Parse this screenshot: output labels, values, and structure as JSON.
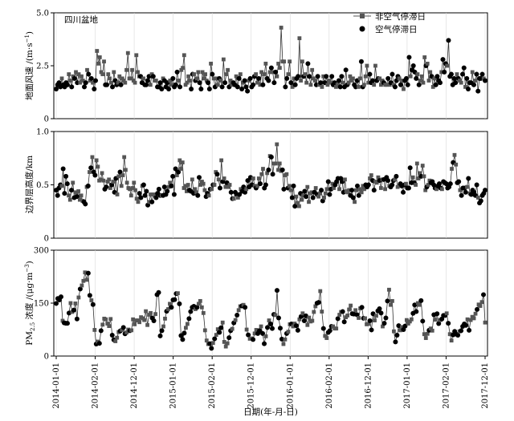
{
  "chart_data": {
    "type": "line",
    "region_label": "四川盆地",
    "legend": {
      "placement": "top-right",
      "entries": [
        {
          "name": "非空气停滞日",
          "marker": "square",
          "color": "#555555"
        },
        {
          "name": "空气停滞日",
          "marker": "circle",
          "color": "#000000"
        }
      ]
    },
    "xlabel": "日期(年-月-日)",
    "x_tick_labels": [
      "2014-01-01",
      "2014-02-01",
      "2014-12-01",
      "2015-01-01",
      "2015-02-01",
      "2015-12-01",
      "2016-01-01",
      "2016-02-01",
      "2016-12-01",
      "2017-01-01",
      "2017-02-01",
      "2017-12-01"
    ],
    "panels": [
      {
        "id": "wind",
        "ylabel": "地面风速 /(m·s⁻¹)",
        "ylabel_main": "地面风速 /(m·s",
        "ylabel_sup": "−1",
        "ylabel_close": ")",
        "ylim": [
          0,
          5
        ],
        "yticks": [
          "0",
          "2.5",
          "5.0"
        ],
        "ytick_values": [
          0,
          2.5,
          5.0
        ],
        "series_values": [
          1.4,
          1.6,
          1.7,
          1.5,
          1.9,
          1.6,
          1.5,
          1.7,
          1.6,
          2.1,
          1.8,
          1.5,
          2.0,
          1.9,
          2.2,
          1.7,
          2.1,
          1.7,
          2.0,
          1.8,
          1.5,
          1.7,
          2.3,
          2.1,
          1.8,
          1.9,
          1.7,
          1.4,
          1.8,
          3.2,
          2.6,
          2.9,
          2.2,
          2.1,
          2.7,
          1.6,
          1.6,
          2.1,
          1.9,
          1.7,
          1.5,
          2.2,
          1.8,
          1.6,
          1.7,
          2.0,
          1.6,
          1.9,
          1.8,
          1.7,
          2.3,
          3.1,
          1.9,
          1.9,
          2.3,
          1.8,
          1.7,
          3.0,
          2.2,
          2.0,
          2.0,
          1.7,
          1.9,
          1.6,
          1.6,
          1.8,
          2.0,
          1.6,
          2.1,
          2.0,
          1.8,
          1.8,
          1.5,
          1.5,
          1.7,
          1.4,
          1.9,
          1.8,
          1.5,
          1.7,
          1.4,
          1.8,
          1.6,
          1.9,
          1.5,
          1.6,
          2.2,
          1.8,
          1.5,
          2.3,
          2.4,
          3.0,
          1.6,
          1.7,
          2.0,
          1.8,
          1.4,
          2.1,
          2.1,
          1.8,
          1.9,
          2.2,
          1.7,
          1.4,
          2.2,
          1.9,
          2.1,
          1.8,
          1.7,
          1.4,
          2.6,
          2.1,
          1.9,
          1.5,
          1.9,
          1.6,
          1.9,
          1.8,
          1.5,
          2.8,
          1.7,
          2.1,
          2.3,
          1.5,
          1.8,
          1.6,
          1.7,
          1.6,
          2.0,
          1.5,
          1.9,
          2.1,
          1.4,
          1.7,
          1.8,
          1.5,
          1.3,
          1.8,
          1.9,
          1.5,
          1.6,
          2.0,
          2.1,
          1.7,
          1.9,
          1.6,
          2.2,
          1.6,
          2.1,
          2.6,
          1.9,
          1.8,
          2.2,
          2.4,
          2.2,
          1.7,
          2.2,
          2.0,
          2.6,
          2.4,
          4.3,
          2.7,
          2.7,
          1.5,
          1.9,
          2.1,
          2.7,
          1.7,
          1.5,
          1.9,
          1.6,
          1.9,
          2.0,
          3.8,
          1.8,
          2.7,
          2.0,
          2.1,
          1.7,
          2.6,
          2.0,
          1.6,
          2.3,
          1.9,
          1.8,
          1.6,
          2.0,
          1.6,
          1.7,
          1.5,
          2.0,
          1.7,
          2.0,
          1.6,
          1.8,
          1.7,
          2.0,
          1.6,
          1.7,
          1.5,
          1.6,
          1.8,
          1.5,
          2.0,
          1.7,
          1.5,
          2.3,
          1.6,
          1.7,
          2.0,
          1.8,
          1.9,
          1.6,
          1.5,
          1.8,
          1.5,
          1.9,
          2.7,
          1.5,
          1.6,
          2.0,
          2.5,
          1.7,
          2.1,
          1.7,
          1.8,
          1.6,
          2.5,
          1.8,
          1.9,
          1.9,
          1.6,
          1.8,
          1.7,
          1.6,
          1.6,
          1.9,
          1.6,
          1.7,
          2.1,
          1.6,
          1.5,
          1.8,
          2.0,
          1.9,
          1.6,
          1.8,
          1.4,
          1.8,
          1.9,
          1.6,
          2.9,
          2.0,
          2.3,
          2.5,
          2.2,
          1.9,
          2.1,
          1.6,
          1.8,
          2.0,
          1.7,
          2.9,
          2.5,
          2.6,
          1.8,
          2.2,
          2.0,
          1.5,
          1.9,
          1.6,
          2.0,
          1.8,
          1.7,
          2.2,
          2.8,
          2.2,
          2.6,
          2.5,
          3.7,
          2.0,
          2.1,
          1.6,
          1.9,
          1.7,
          2.1,
          1.9,
          1.8,
          1.7,
          2.1,
          2.4,
          1.5,
          1.9,
          1.4,
          1.7,
          1.7,
          2.2,
          1.6,
          1.8,
          2.1,
          1.3,
          1.9,
          1.9,
          2.1,
          1.9,
          1.8
        ],
        "stagnation_flags": [
          1,
          1,
          1,
          1,
          0,
          1,
          1,
          1,
          1,
          0,
          0,
          1,
          0,
          1,
          0,
          1,
          0,
          0,
          0,
          0,
          1,
          1,
          0,
          1,
          0,
          1,
          0,
          1,
          1,
          0,
          0,
          0,
          0,
          0,
          0,
          1,
          1,
          0,
          0,
          0,
          1,
          0,
          1,
          1,
          0,
          0,
          1,
          0,
          0,
          0,
          0,
          0,
          0,
          0,
          0,
          0,
          0,
          0,
          0,
          0,
          1,
          1,
          0,
          1,
          1,
          1,
          1,
          0,
          0,
          1,
          0,
          0,
          1,
          1,
          1,
          1,
          0,
          1,
          1,
          1,
          1,
          0,
          0,
          1,
          1,
          1,
          1,
          0,
          1,
          0,
          0,
          0,
          0,
          0,
          0,
          0,
          1,
          1,
          0,
          1,
          0,
          0,
          1,
          1,
          0,
          0,
          0,
          0,
          1,
          1,
          0,
          1,
          0,
          1,
          0,
          0,
          1,
          0,
          1,
          0,
          1,
          0,
          0,
          1,
          0,
          0,
          1,
          1,
          0,
          1,
          1,
          0,
          1,
          0,
          1,
          1,
          1,
          0,
          1,
          1,
          1,
          1,
          0,
          0,
          1,
          0,
          0,
          1,
          0,
          0,
          1,
          1,
          0,
          1,
          0,
          1,
          1,
          0,
          0,
          0,
          0,
          0,
          0,
          1,
          1,
          0,
          0,
          1,
          0,
          0,
          1,
          1,
          1,
          0,
          0,
          0,
          1,
          0,
          0,
          1,
          1,
          0,
          0,
          0,
          0,
          1,
          1,
          0,
          1,
          0,
          0,
          1,
          1,
          0,
          0,
          0,
          1,
          1,
          1,
          0,
          0,
          1,
          1,
          1,
          0,
          1,
          1,
          1,
          0,
          0,
          0,
          0,
          1,
          1,
          1,
          0,
          0,
          1,
          1,
          0,
          0,
          0,
          0,
          1,
          1,
          1,
          0,
          0,
          1,
          1,
          0,
          0,
          0,
          1,
          0,
          0,
          1,
          0,
          1,
          1,
          0,
          1,
          1,
          1,
          0,
          1,
          0,
          0,
          1,
          1,
          1,
          1,
          0,
          1,
          1,
          1,
          1,
          0,
          1,
          0,
          0,
          0,
          0,
          1,
          0,
          0,
          0,
          1,
          0,
          0,
          1,
          1,
          1,
          1,
          0,
          1,
          1,
          1,
          0,
          1,
          1,
          1,
          1,
          1,
          1,
          0,
          1,
          0,
          0,
          1,
          1,
          0,
          1,
          1,
          1,
          1,
          0,
          1,
          0,
          1,
          1,
          1,
          1,
          1,
          0,
          1
        ]
      },
      {
        "id": "blh",
        "ylabel": "边界层高度/km",
        "ylabel_main": "边界层高度/km",
        "ylabel_sup": "",
        "ylabel_close": "",
        "ylim": [
          0,
          1
        ],
        "yticks": [
          "0",
          "0.5",
          "1.0"
        ],
        "ytick_values": [
          0,
          0.5,
          1.0
        ],
        "series_values": [
          0.45,
          0.4,
          0.47,
          0.5,
          0.49,
          0.65,
          0.42,
          0.58,
          0.51,
          0.4,
          0.36,
          0.45,
          0.52,
          0.38,
          0.43,
          0.39,
          0.44,
          0.36,
          0.4,
          0.35,
          0.34,
          0.32,
          0.48,
          0.49,
          0.62,
          0.66,
          0.76,
          0.62,
          0.59,
          0.73,
          0.67,
          0.54,
          0.55,
          0.61,
          0.54,
          0.46,
          0.48,
          0.53,
          0.55,
          0.47,
          0.5,
          0.53,
          0.43,
          0.56,
          0.41,
          0.58,
          0.62,
          0.49,
          0.59,
          0.76,
          0.64,
          0.52,
          0.47,
          0.46,
          0.4,
          0.47,
          0.52,
          0.45,
          0.37,
          0.34,
          0.42,
          0.38,
          0.49,
          0.5,
          0.4,
          0.44,
          0.31,
          0.34,
          0.41,
          0.34,
          0.41,
          0.4,
          0.38,
          0.42,
          0.46,
          0.4,
          0.4,
          0.4,
          0.48,
          0.41,
          0.44,
          0.48,
          0.52,
          0.49,
          0.58,
          0.41,
          0.65,
          0.59,
          0.62,
          0.73,
          0.65,
          0.71,
          0.47,
          0.49,
          0.44,
          0.5,
          0.45,
          0.44,
          0.55,
          0.42,
          0.46,
          0.43,
          0.4,
          0.57,
          0.5,
          0.53,
          0.51,
          0.45,
          0.39,
          0.42,
          0.4,
          0.46,
          0.46,
          0.5,
          0.5,
          0.62,
          0.6,
          0.55,
          0.47,
          0.73,
          0.53,
          0.56,
          0.48,
          0.52,
          0.48,
          0.5,
          0.43,
          0.37,
          0.37,
          0.43,
          0.41,
          0.38,
          0.41,
          0.46,
          0.44,
          0.48,
          0.43,
          0.46,
          0.54,
          0.48,
          0.57,
          0.5,
          0.56,
          0.49,
          0.47,
          0.49,
          0.56,
          0.51,
          0.6,
          0.65,
          0.47,
          0.5,
          0.61,
          0.64,
          0.77,
          0.76,
          0.6,
          0.7,
          0.7,
          0.88,
          0.64,
          0.7,
          0.63,
          0.64,
          0.46,
          0.59,
          0.6,
          0.47,
          0.49,
          0.45,
          0.38,
          0.49,
          0.3,
          0.39,
          0.33,
          0.3,
          0.42,
          0.36,
          0.4,
          0.44,
          0.39,
          0.48,
          0.34,
          0.42,
          0.43,
          0.38,
          0.43,
          0.47,
          0.41,
          0.39,
          0.42,
          0.45,
          0.35,
          0.38,
          0.42,
          0.46,
          0.53,
          0.41,
          0.46,
          0.51,
          0.47,
          0.5,
          0.53,
          0.56,
          0.46,
          0.56,
          0.53,
          0.43,
          0.55,
          0.44,
          0.43,
          0.45,
          0.4,
          0.45,
          0.38,
          0.34,
          0.45,
          0.49,
          0.4,
          0.46,
          0.43,
          0.49,
          0.46,
          0.5,
          0.48,
          0.5,
          0.56,
          0.59,
          0.54,
          0.45,
          0.53,
          0.52,
          0.57,
          0.54,
          0.47,
          0.55,
          0.55,
          0.46,
          0.57,
          0.54,
          0.49,
          0.48,
          0.5,
          0.54,
          0.55,
          0.58,
          0.48,
          0.49,
          0.51,
          0.49,
          0.43,
          0.5,
          0.51,
          0.47,
          0.47,
          0.66,
          0.52,
          0.57,
          0.52,
          0.5,
          0.7,
          0.56,
          0.61,
          0.58,
          0.68,
          0.58,
          0.45,
          0.48,
          0.5,
          0.54,
          0.52,
          0.53,
          0.5,
          0.47,
          0.46,
          0.49,
          0.51,
          0.47,
          0.46,
          0.53,
          0.52,
          0.51,
          0.47,
          0.48,
          0.51,
          0.65,
          0.71,
          0.78,
          0.69,
          0.52,
          0.53,
          0.45,
          0.4,
          0.47,
          0.47,
          0.43,
          0.48,
          0.56,
          0.42,
          0.41,
          0.45,
          0.43,
          0.4,
          0.5,
          0.38,
          0.33,
          0.35,
          0.4,
          0.42,
          0.45
        ]
      },
      {
        "id": "pm25",
        "ylabel": "PM₂.₅ 浓度 /(μg·m⁻³)",
        "ylabel_main": "PM",
        "ylabel_sub": "2.5",
        "ylabel_rest": " 浓度 /(μg·m",
        "ylabel_sup": "−3",
        "ylabel_close": ")",
        "ylim": [
          0,
          300
        ],
        "yticks": [
          "0",
          "150",
          "300"
        ],
        "ytick_values": [
          0,
          150,
          300
        ],
        "series_values": [
          149,
          163,
          159,
          168,
          100,
          94,
          93,
          93,
          122,
          150,
          125,
          130,
          149,
          105,
          166,
          190,
          200,
          213,
          237,
          216,
          235,
          172,
          158,
          146,
          74,
          34,
          41,
          36,
          72,
          89,
          106,
          104,
          92,
          85,
          105,
          59,
          46,
          42,
          52,
          68,
          71,
          74,
          81,
          63,
          67,
          75,
          72,
          73,
          104,
          90,
          101,
          101,
          96,
          110,
          107,
          102,
          127,
          88,
          117,
          122,
          108,
          100,
          119,
          174,
          180,
          57,
          72,
          84,
          106,
          127,
          133,
          148,
          138,
          159,
          160,
          177,
          178,
          148,
          58,
          47,
          65,
          80,
          91,
          106,
          126,
          138,
          141,
          133,
          138,
          148,
          156,
          138,
          122,
          73,
          44,
          34,
          35,
          22,
          37,
          49,
          60,
          76,
          67,
          80,
          95,
          40,
          27,
          36,
          52,
          72,
          77,
          94,
          102,
          116,
          130,
          141,
          142,
          145,
          138,
          75,
          60,
          49,
          50,
          47,
          64,
          74,
          64,
          72,
          84,
          64,
          35,
          56,
          81,
          101,
          91,
          78,
          118,
          116,
          186,
          108,
          79,
          48,
          34,
          47,
          64,
          69,
          90,
          91,
          84,
          92,
          86,
          73,
          104,
          112,
          121,
          100,
          114,
          88,
          109,
          98,
          100,
          125,
          141,
          150,
          152,
          184,
          126,
          78,
          57,
          51,
          67,
          72,
          84,
          84,
          78,
          78,
          106,
          117,
          125,
          126,
          97,
          110,
          115,
          132,
          143,
          120,
          119,
          130,
          117,
          108,
          135,
          138,
          107,
          107,
          90,
          91,
          100,
          74,
          120,
          101,
          114,
          128,
          134,
          122,
          84,
          93,
          108,
          156,
          188,
          145,
          156,
          70,
          40,
          59,
          86,
          73,
          82,
          75,
          85,
          102,
          92,
          98,
          104,
          121,
          145,
          126,
          150,
          145,
          157,
          99,
          62,
          51,
          63,
          73,
          78,
          72,
          117,
          103,
          120,
          92,
          102,
          105,
          115,
          115,
          121,
          93,
          62,
          44,
          60,
          70,
          62,
          59,
          70,
          72,
          84,
          91,
          87,
          104,
          73,
          102,
          111,
          107,
          120,
          132,
          146,
          142,
          153,
          174,
          95
        ]
      }
    ]
  }
}
